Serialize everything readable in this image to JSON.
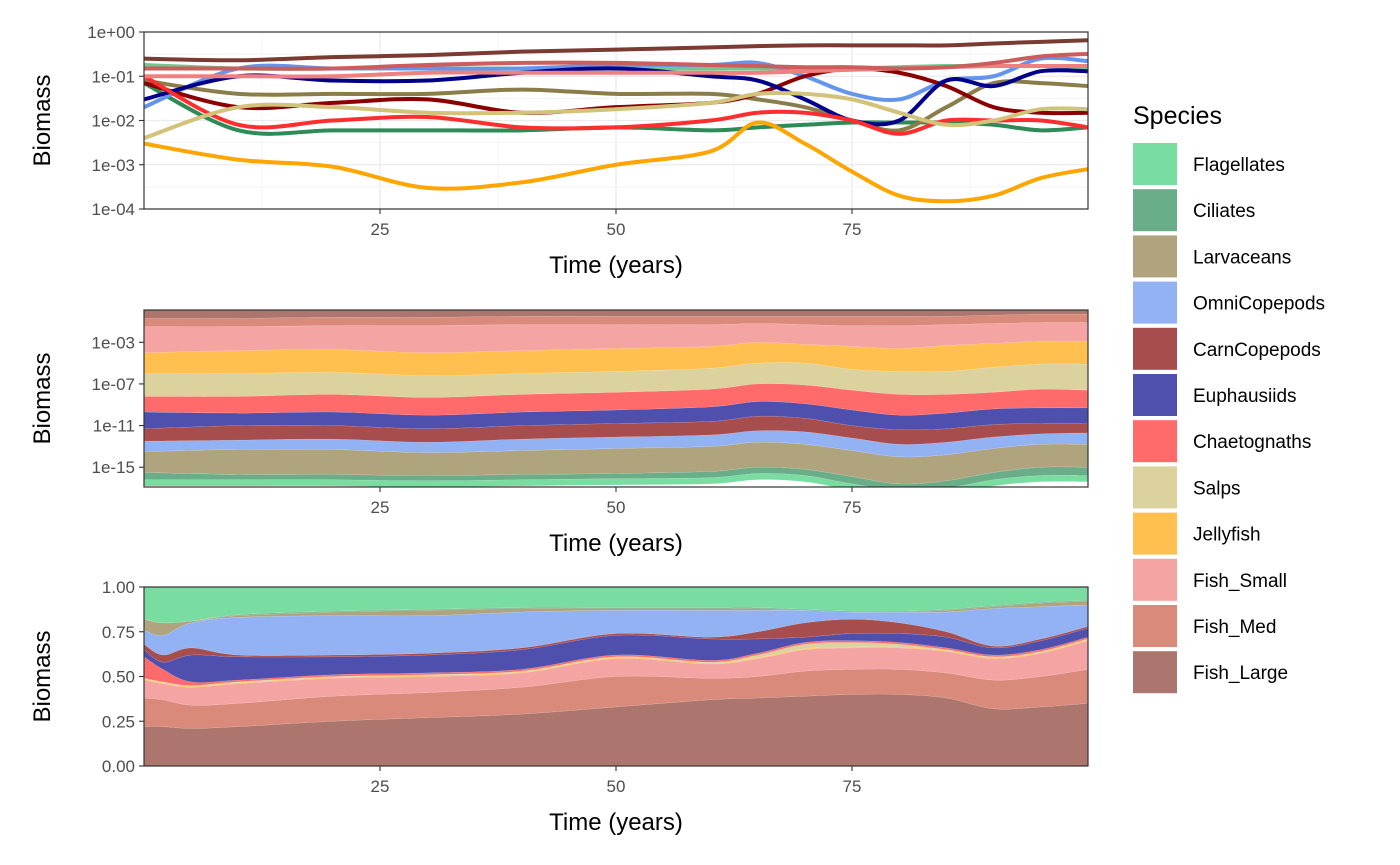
{
  "chart_data": [
    {
      "type": "line",
      "title": "",
      "xlabel": "Time (years)",
      "ylabel": "Biomass",
      "y_scale": "log10",
      "xlim": [
        0,
        100
      ],
      "ylim": [
        0.0001,
        1
      ],
      "x_ticks": [
        25,
        50,
        75
      ],
      "x_tick_labels": [
        "25",
        "50",
        "75"
      ],
      "y_ticks": [
        0.0001,
        0.001,
        0.01,
        0.1,
        1
      ],
      "y_tick_labels": [
        "1e-04",
        "1e-03",
        "1e-02",
        "1e-01",
        "1e+00"
      ],
      "grid": true,
      "x": [
        0,
        10,
        20,
        30,
        40,
        50,
        60,
        65,
        70,
        75,
        80,
        85,
        90,
        95,
        100
      ],
      "series": [
        {
          "name": "Flagellates",
          "color": "#6FC98E",
          "values": [
            0.18,
            0.15,
            0.15,
            0.15,
            0.15,
            0.15,
            0.15,
            0.15,
            0.15,
            0.15,
            0.16,
            0.17,
            0.17,
            0.17,
            0.16
          ]
        },
        {
          "name": "Ciliates",
          "color": "#2E8B57",
          "values": [
            0.07,
            0.006,
            0.006,
            0.006,
            0.006,
            0.007,
            0.006,
            0.007,
            0.008,
            0.009,
            0.009,
            0.009,
            0.008,
            0.006,
            0.007
          ]
        },
        {
          "name": "Larvaceans",
          "color": "#8B7D4A",
          "values": [
            0.08,
            0.04,
            0.04,
            0.04,
            0.05,
            0.04,
            0.04,
            0.03,
            0.02,
            0.01,
            0.006,
            0.02,
            0.07,
            0.07,
            0.06
          ]
        },
        {
          "name": "OmniCopepods",
          "color": "#6495ED",
          "values": [
            0.02,
            0.15,
            0.15,
            0.15,
            0.15,
            0.18,
            0.18,
            0.2,
            0.1,
            0.04,
            0.03,
            0.08,
            0.1,
            0.25,
            0.22
          ]
        },
        {
          "name": "CarnCopepods",
          "color": "#8B0000",
          "values": [
            0.07,
            0.02,
            0.025,
            0.03,
            0.015,
            0.02,
            0.025,
            0.04,
            0.1,
            0.15,
            0.12,
            0.06,
            0.02,
            0.015,
            0.015
          ]
        },
        {
          "name": "Euphausiids",
          "color": "#00008B",
          "values": [
            0.03,
            0.1,
            0.08,
            0.08,
            0.12,
            0.15,
            0.1,
            0.08,
            0.03,
            0.01,
            0.01,
            0.08,
            0.06,
            0.13,
            0.13
          ]
        },
        {
          "name": "Chaetognaths",
          "color": "#FF2E2E",
          "values": [
            0.1,
            0.008,
            0.01,
            0.012,
            0.007,
            0.007,
            0.01,
            0.015,
            0.015,
            0.01,
            0.005,
            0.01,
            0.01,
            0.01,
            0.007
          ]
        },
        {
          "name": "Salps",
          "color": "#D2C27A",
          "values": [
            0.004,
            0.02,
            0.02,
            0.015,
            0.015,
            0.018,
            0.025,
            0.04,
            0.04,
            0.03,
            0.015,
            0.008,
            0.01,
            0.018,
            0.018
          ]
        },
        {
          "name": "Jellyfish",
          "color": "#FFA500",
          "values": [
            0.003,
            0.0013,
            0.0009,
            0.0003,
            0.0004,
            0.001,
            0.002,
            0.009,
            0.003,
            0.0007,
            0.0002,
            0.00015,
            0.0002,
            0.0005,
            0.0008
          ]
        },
        {
          "name": "Fish_Small",
          "color": "#F08080",
          "values": [
            0.1,
            0.1,
            0.1,
            0.12,
            0.12,
            0.12,
            0.12,
            0.12,
            0.13,
            0.14,
            0.15,
            0.16,
            0.17,
            0.17,
            0.17
          ]
        },
        {
          "name": "Fish_Med",
          "color": "#CD5C5C",
          "values": [
            0.15,
            0.15,
            0.15,
            0.18,
            0.2,
            0.2,
            0.18,
            0.17,
            0.16,
            0.16,
            0.15,
            0.16,
            0.2,
            0.28,
            0.32
          ]
        },
        {
          "name": "Fish_Large",
          "color": "#7B3A32",
          "values": [
            0.25,
            0.23,
            0.27,
            0.3,
            0.36,
            0.4,
            0.45,
            0.48,
            0.5,
            0.5,
            0.5,
            0.5,
            0.55,
            0.6,
            0.65
          ]
        }
      ]
    },
    {
      "type": "area",
      "stacked": true,
      "title": "",
      "xlabel": "Time (years)",
      "ylabel": "Biomass",
      "y_scale": "log10",
      "xlim": [
        0,
        100
      ],
      "x_ticks": [
        25,
        50,
        75
      ],
      "x_tick_labels": [
        "25",
        "50",
        "75"
      ],
      "y_ticks": [
        1e-15,
        1e-11,
        1e-07,
        0.001
      ],
      "y_tick_labels": [
        "1e-15",
        "1e-11",
        "1e-07",
        "1e-03"
      ],
      "grid": true,
      "x": [
        0,
        10,
        20,
        30,
        40,
        50,
        60,
        65,
        70,
        75,
        80,
        85,
        90,
        95,
        100
      ],
      "series_boundaries_log10": [
        {
          "name": "Flagellates",
          "values": [
            -16.2,
            -16.2,
            -16.2,
            -16.3,
            -16.2,
            -16.1,
            -16.0,
            -15.6,
            -15.8,
            -16.6,
            -17.2,
            -17.0,
            -16.2,
            -15.8,
            -15.8
          ]
        },
        {
          "name": "Ciliates",
          "values": [
            -15.5,
            -15.7,
            -15.7,
            -15.8,
            -15.7,
            -15.6,
            -15.4,
            -15.0,
            -15.2,
            -15.9,
            -16.6,
            -16.3,
            -15.5,
            -15.0,
            -15.0
          ]
        },
        {
          "name": "Larvaceans",
          "values": [
            -13.5,
            -13.3,
            -13.3,
            -13.6,
            -13.4,
            -13.2,
            -13.0,
            -12.6,
            -12.8,
            -13.4,
            -14.0,
            -13.8,
            -13.2,
            -12.8,
            -12.8
          ]
        },
        {
          "name": "OmniCopepods",
          "values": [
            -12.5,
            -12.4,
            -12.3,
            -12.6,
            -12.3,
            -12.1,
            -11.9,
            -11.5,
            -11.6,
            -12.2,
            -12.8,
            -12.6,
            -12.1,
            -11.8,
            -11.7
          ]
        },
        {
          "name": "CarnCopepods",
          "values": [
            -11.3,
            -11.0,
            -11.0,
            -11.3,
            -11.0,
            -10.8,
            -10.6,
            -10.1,
            -10.3,
            -11.0,
            -11.4,
            -11.3,
            -10.9,
            -10.8,
            -10.8
          ]
        },
        {
          "name": "Euphausiids",
          "values": [
            -9.7,
            -9.8,
            -9.7,
            -10.0,
            -9.7,
            -9.5,
            -9.2,
            -8.7,
            -8.9,
            -9.5,
            -10.0,
            -9.8,
            -9.4,
            -9.3,
            -9.3
          ]
        },
        {
          "name": "Chaetognaths",
          "values": [
            -8.2,
            -8.2,
            -8.0,
            -8.3,
            -8.0,
            -7.8,
            -7.5,
            -7.0,
            -7.1,
            -7.6,
            -8.0,
            -8.0,
            -7.8,
            -7.5,
            -7.6
          ]
        },
        {
          "name": "Salps",
          "values": [
            -6.0,
            -6.0,
            -5.9,
            -6.2,
            -6.0,
            -5.8,
            -5.5,
            -5.0,
            -5.0,
            -5.6,
            -5.8,
            -5.8,
            -5.4,
            -5.1,
            -5.1
          ]
        },
        {
          "name": "Jellyfish",
          "values": [
            -4.0,
            -3.8,
            -3.7,
            -4.0,
            -3.8,
            -3.6,
            -3.4,
            -3.0,
            -3.2,
            -3.4,
            -3.6,
            -3.3,
            -3.1,
            -2.9,
            -2.9
          ]
        },
        {
          "name": "Fish_Small",
          "values": [
            -1.5,
            -1.5,
            -1.4,
            -1.4,
            -1.3,
            -1.3,
            -1.3,
            -1.2,
            -1.3,
            -1.4,
            -1.4,
            -1.3,
            -1.2,
            -1.1,
            -1.1
          ]
        },
        {
          "name": "Fish_Med",
          "values": [
            -0.7,
            -0.7,
            -0.6,
            -0.6,
            -0.5,
            -0.5,
            -0.5,
            -0.5,
            -0.5,
            -0.5,
            -0.5,
            -0.5,
            -0.4,
            -0.3,
            -0.3
          ]
        },
        {
          "name": "Fish_Large",
          "values": [
            0.1,
            0.1,
            0.1,
            0.1,
            0.1,
            0.1,
            0.1,
            0.1,
            0.1,
            0.1,
            0.1,
            0.1,
            0.1,
            0.1,
            0.1
          ]
        }
      ]
    },
    {
      "type": "area",
      "stacked": true,
      "title": "",
      "xlabel": "Time (years)",
      "ylabel": "Biomass",
      "xlim": [
        0,
        100
      ],
      "ylim": [
        0,
        1
      ],
      "x_ticks": [
        25,
        50,
        75
      ],
      "x_tick_labels": [
        "25",
        "50",
        "75"
      ],
      "y_ticks": [
        0,
        0.25,
        0.5,
        0.75,
        1
      ],
      "y_tick_labels": [
        "0.00",
        "0.25",
        "0.50",
        "0.75",
        "1.00"
      ],
      "grid": true,
      "x": [
        0,
        2,
        5,
        10,
        20,
        30,
        40,
        50,
        60,
        65,
        70,
        75,
        80,
        85,
        90,
        95,
        100
      ],
      "cumulative_top": [
        {
          "name": "Fish_Large",
          "values": [
            0.22,
            0.22,
            0.21,
            0.22,
            0.25,
            0.27,
            0.29,
            0.33,
            0.37,
            0.38,
            0.39,
            0.4,
            0.4,
            0.38,
            0.32,
            0.33,
            0.35
          ]
        },
        {
          "name": "Fish_Med",
          "values": [
            0.38,
            0.37,
            0.34,
            0.35,
            0.39,
            0.41,
            0.44,
            0.5,
            0.49,
            0.5,
            0.53,
            0.54,
            0.54,
            0.52,
            0.48,
            0.5,
            0.54
          ]
        },
        {
          "name": "Fish_Small",
          "values": [
            0.48,
            0.46,
            0.44,
            0.46,
            0.49,
            0.5,
            0.52,
            0.6,
            0.57,
            0.6,
            0.65,
            0.66,
            0.66,
            0.64,
            0.6,
            0.63,
            0.7
          ]
        },
        {
          "name": "Jellyfish",
          "values": [
            0.485,
            0.465,
            0.445,
            0.465,
            0.495,
            0.505,
            0.525,
            0.605,
            0.575,
            0.605,
            0.655,
            0.665,
            0.665,
            0.645,
            0.605,
            0.635,
            0.705
          ]
        },
        {
          "name": "Salps",
          "values": [
            0.49,
            0.47,
            0.45,
            0.47,
            0.5,
            0.51,
            0.53,
            0.61,
            0.58,
            0.62,
            0.68,
            0.69,
            0.68,
            0.65,
            0.61,
            0.64,
            0.71
          ]
        },
        {
          "name": "Chaetognaths",
          "values": [
            0.61,
            0.54,
            0.47,
            0.48,
            0.51,
            0.52,
            0.54,
            0.62,
            0.59,
            0.63,
            0.69,
            0.7,
            0.69,
            0.66,
            0.62,
            0.65,
            0.72
          ]
        },
        {
          "name": "Euphausiids",
          "values": [
            0.65,
            0.58,
            0.62,
            0.61,
            0.61,
            0.62,
            0.65,
            0.73,
            0.71,
            0.71,
            0.72,
            0.74,
            0.74,
            0.72,
            0.66,
            0.7,
            0.77
          ]
        },
        {
          "name": "CarnCopepods",
          "values": [
            0.68,
            0.62,
            0.66,
            0.62,
            0.62,
            0.63,
            0.66,
            0.74,
            0.72,
            0.75,
            0.8,
            0.82,
            0.8,
            0.75,
            0.67,
            0.71,
            0.78
          ]
        },
        {
          "name": "OmniCopepods",
          "values": [
            0.76,
            0.73,
            0.8,
            0.83,
            0.84,
            0.84,
            0.86,
            0.87,
            0.87,
            0.87,
            0.87,
            0.86,
            0.86,
            0.86,
            0.88,
            0.89,
            0.9
          ]
        },
        {
          "name": "Larvaceans",
          "values": [
            0.82,
            0.8,
            0.81,
            0.84,
            0.86,
            0.87,
            0.88,
            0.88,
            0.88,
            0.88,
            0.87,
            0.86,
            0.86,
            0.87,
            0.89,
            0.91,
            0.92
          ]
        },
        {
          "name": "Ciliates",
          "values": [
            0.82,
            0.8,
            0.81,
            0.845,
            0.865,
            0.875,
            0.885,
            0.885,
            0.885,
            0.885,
            0.875,
            0.865,
            0.865,
            0.875,
            0.895,
            0.915,
            0.925
          ]
        },
        {
          "name": "Flagellates",
          "values": [
            1,
            1,
            1,
            1,
            1,
            1,
            1,
            1,
            1,
            1,
            1,
            1,
            1,
            1,
            1,
            1,
            1
          ]
        }
      ]
    }
  ],
  "legend": {
    "title": "Species",
    "placement": "right",
    "items": [
      {
        "label": "Flagellates",
        "color": "#79DDA2"
      },
      {
        "label": "Ciliates",
        "color": "#6AAE89"
      },
      {
        "label": "Larvaceans",
        "color": "#AFA47E"
      },
      {
        "label": "OmniCopepods",
        "color": "#92B2F3"
      },
      {
        "label": "CarnCopepods",
        "color": "#A84D4D"
      },
      {
        "label": "Euphausiids",
        "color": "#4F4FAE"
      },
      {
        "label": "Chaetognaths",
        "color": "#FF6B6B"
      },
      {
        "label": "Salps",
        "color": "#DCD29E"
      },
      {
        "label": "Jellyfish",
        "color": "#FFC04F"
      },
      {
        "label": "Fish_Small",
        "color": "#F5A4A4"
      },
      {
        "label": "Fish_Med",
        "color": "#DA8A7A"
      },
      {
        "label": "Fish_Large",
        "color": "#AC766E"
      }
    ]
  }
}
